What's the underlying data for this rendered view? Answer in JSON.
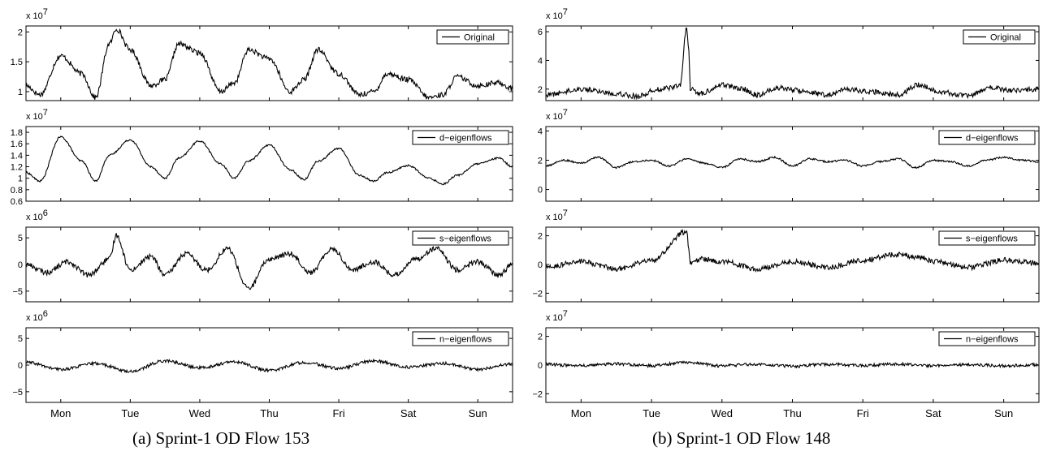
{
  "captions": {
    "left": "(a) Sprint-1 OD Flow 153",
    "right": "(b) Sprint-1 OD Flow 148"
  },
  "days": [
    "Mon",
    "Tue",
    "Wed",
    "Thu",
    "Fri",
    "Sat",
    "Sun"
  ],
  "chart_data": [
    {
      "type": "line",
      "figure": "(a) Sprint-1 OD Flow 153",
      "series_name": "Original",
      "exponent": "x 10",
      "exponent_power": "7",
      "yticks": [
        1,
        1.5,
        2
      ],
      "ytick_labels": [
        "1",
        "1.5",
        "2"
      ],
      "ylim": [
        0.85,
        2.1
      ],
      "x": [
        0.0,
        0.2,
        0.5,
        0.8,
        1.0,
        1.2,
        1.3,
        1.5,
        1.8,
        2.0,
        2.2,
        2.5,
        2.8,
        3.0,
        3.2,
        3.5,
        3.8,
        4.0,
        4.2,
        4.5,
        4.8,
        5.0,
        5.2,
        5.5,
        5.8,
        6.0,
        6.2,
        6.5,
        6.8,
        7.0
      ],
      "values": [
        1.1,
        0.95,
        1.6,
        1.3,
        0.9,
        1.8,
        2.05,
        1.7,
        1.1,
        1.2,
        1.8,
        1.65,
        1.0,
        1.15,
        1.7,
        1.55,
        1.0,
        1.2,
        1.7,
        1.3,
        0.95,
        1.0,
        1.3,
        1.2,
        0.9,
        0.95,
        1.25,
        1.1,
        1.15,
        1.05
      ]
    },
    {
      "type": "line",
      "figure": "(a) Sprint-1 OD Flow 153",
      "series_name": "d−eigenflows",
      "exponent": "x 10",
      "exponent_power": "7",
      "yticks": [
        0.6,
        0.8,
        1,
        1.2,
        1.4,
        1.6,
        1.8
      ],
      "ytick_labels": [
        "0.6",
        "0.8",
        "1",
        "1.2",
        "1.4",
        "1.6",
        "1.8"
      ],
      "ylim": [
        0.6,
        1.9
      ],
      "x": [
        0.0,
        0.2,
        0.5,
        0.8,
        1.0,
        1.2,
        1.5,
        1.8,
        2.0,
        2.2,
        2.5,
        2.8,
        3.0,
        3.2,
        3.5,
        3.8,
        4.0,
        4.2,
        4.5,
        4.8,
        5.0,
        5.2,
        5.5,
        5.8,
        6.0,
        6.2,
        6.5,
        6.8,
        7.0
      ],
      "values": [
        1.1,
        0.95,
        1.72,
        1.3,
        0.95,
        1.4,
        1.67,
        1.2,
        1.0,
        1.35,
        1.65,
        1.25,
        1.0,
        1.3,
        1.58,
        1.15,
        0.98,
        1.3,
        1.52,
        1.05,
        0.95,
        1.1,
        1.22,
        1.0,
        0.9,
        1.05,
        1.25,
        1.35,
        1.2
      ]
    },
    {
      "type": "line",
      "figure": "(a) Sprint-1 OD Flow 153",
      "series_name": "s−eigenflows",
      "exponent": "x 10",
      "exponent_power": "6",
      "yticks": [
        -5,
        0,
        5
      ],
      "ytick_labels": [
        "−5",
        "0",
        "5"
      ],
      "ylim": [
        -7,
        7
      ],
      "x": [
        0.0,
        0.3,
        0.6,
        0.9,
        1.2,
        1.3,
        1.5,
        1.8,
        2.0,
        2.3,
        2.6,
        2.9,
        3.2,
        3.5,
        3.8,
        4.1,
        4.4,
        4.7,
        5.0,
        5.3,
        5.6,
        5.9,
        6.2,
        6.5,
        6.8,
        7.0
      ],
      "values": [
        0,
        -1.5,
        0.5,
        -2,
        1,
        5.5,
        -1,
        1.5,
        -2,
        2,
        -1,
        3,
        -4.5,
        1,
        2,
        -1.5,
        3,
        -1,
        0.5,
        -2,
        1,
        3,
        -1,
        0.5,
        -2,
        0
      ]
    },
    {
      "type": "line",
      "figure": "(a) Sprint-1 OD Flow 153",
      "series_name": "n−eigenflows",
      "exponent": "x 10",
      "exponent_power": "6",
      "yticks": [
        -5,
        0,
        5
      ],
      "ytick_labels": [
        "−5",
        "0",
        "5"
      ],
      "ylim": [
        -7,
        7
      ],
      "x": [
        0.0,
        0.5,
        1.0,
        1.5,
        2.0,
        2.5,
        3.0,
        3.5,
        4.0,
        4.5,
        5.0,
        5.5,
        6.0,
        6.5,
        7.0
      ],
      "values": [
        0.5,
        -0.8,
        0.3,
        -1.2,
        0.8,
        -0.5,
        0.6,
        -1,
        0.5,
        -0.6,
        0.8,
        -0.4,
        0.3,
        -0.8,
        0.2
      ]
    },
    {
      "type": "line",
      "figure": "(b) Sprint-1 OD Flow 148",
      "series_name": "Original",
      "exponent": "x 10",
      "exponent_power": "7",
      "yticks": [
        2,
        4,
        6
      ],
      "ytick_labels": [
        "2",
        "4",
        "6"
      ],
      "ylim": [
        1.2,
        6.4
      ],
      "x": [
        0.0,
        0.5,
        1.0,
        1.3,
        1.6,
        1.9,
        2.0,
        2.03,
        2.05,
        2.2,
        2.5,
        2.8,
        3.0,
        3.3,
        3.6,
        4.0,
        4.3,
        4.6,
        5.0,
        5.3,
        5.6,
        6.0,
        6.3,
        6.6,
        7.0
      ],
      "values": [
        1.6,
        2.0,
        1.7,
        1.5,
        2.0,
        2.2,
        6.2,
        4.6,
        2.0,
        1.7,
        2.3,
        2.0,
        1.6,
        2.1,
        1.9,
        1.6,
        2.0,
        1.8,
        1.6,
        2.3,
        1.8,
        1.5,
        2.1,
        1.9,
        2.0
      ]
    },
    {
      "type": "line",
      "figure": "(b) Sprint-1 OD Flow 148",
      "series_name": "d−eigenflows",
      "exponent": "x 10",
      "exponent_power": "7",
      "yticks": [
        0,
        2,
        4
      ],
      "ytick_labels": [
        "0",
        "2",
        "4"
      ],
      "ylim": [
        -0.8,
        4.3
      ],
      "x": [
        0.0,
        0.25,
        0.5,
        0.75,
        1.0,
        1.25,
        1.5,
        1.75,
        2.0,
        2.25,
        2.5,
        2.75,
        3.0,
        3.25,
        3.5,
        3.75,
        4.0,
        4.25,
        4.5,
        4.75,
        5.0,
        5.25,
        5.5,
        5.75,
        6.0,
        6.25,
        6.5,
        6.75,
        7.0
      ],
      "values": [
        1.6,
        2.0,
        1.8,
        2.2,
        1.5,
        1.9,
        2.0,
        1.6,
        2.1,
        1.8,
        1.5,
        2.1,
        1.9,
        2.2,
        1.6,
        2.1,
        1.9,
        2.0,
        1.6,
        1.9,
        2.1,
        1.5,
        2.0,
        1.9,
        1.6,
        2.0,
        2.2,
        2.0,
        1.9
      ]
    },
    {
      "type": "line",
      "figure": "(b) Sprint-1 OD Flow 148",
      "series_name": "s−eigenflows",
      "exponent": "x 10",
      "exponent_power": "7",
      "yticks": [
        -2,
        0,
        2
      ],
      "ytick_labels": [
        "−2",
        "0",
        "2"
      ],
      "ylim": [
        -2.6,
        2.6
      ],
      "x": [
        0.0,
        0.5,
        1.0,
        1.5,
        2.0,
        2.03,
        2.05,
        2.2,
        2.5,
        3.0,
        3.5,
        4.0,
        4.5,
        5.0,
        5.3,
        5.5,
        6.0,
        6.5,
        7.0
      ],
      "values": [
        -0.2,
        0.2,
        -0.3,
        0.3,
        2.3,
        1.0,
        0.0,
        0.4,
        0.2,
        -0.3,
        0.2,
        -0.2,
        0.3,
        0.7,
        0.5,
        0.2,
        -0.2,
        0.3,
        0.1
      ]
    },
    {
      "type": "line",
      "figure": "(b) Sprint-1 OD Flow 148",
      "series_name": "n−eigenflows",
      "exponent": "x 10",
      "exponent_power": "7",
      "yticks": [
        -2,
        0,
        2
      ],
      "ytick_labels": [
        "−2",
        "0",
        "2"
      ],
      "ylim": [
        -2.6,
        2.6
      ],
      "x": [
        0.0,
        0.5,
        1.0,
        1.5,
        2.0,
        2.5,
        3.0,
        3.5,
        4.0,
        4.5,
        5.0,
        5.5,
        6.0,
        6.5,
        7.0
      ],
      "values": [
        0.05,
        -0.05,
        0.08,
        -0.05,
        0.2,
        -0.05,
        0.05,
        -0.08,
        0.05,
        -0.03,
        0.06,
        -0.05,
        0.04,
        -0.05,
        0.03
      ]
    }
  ]
}
